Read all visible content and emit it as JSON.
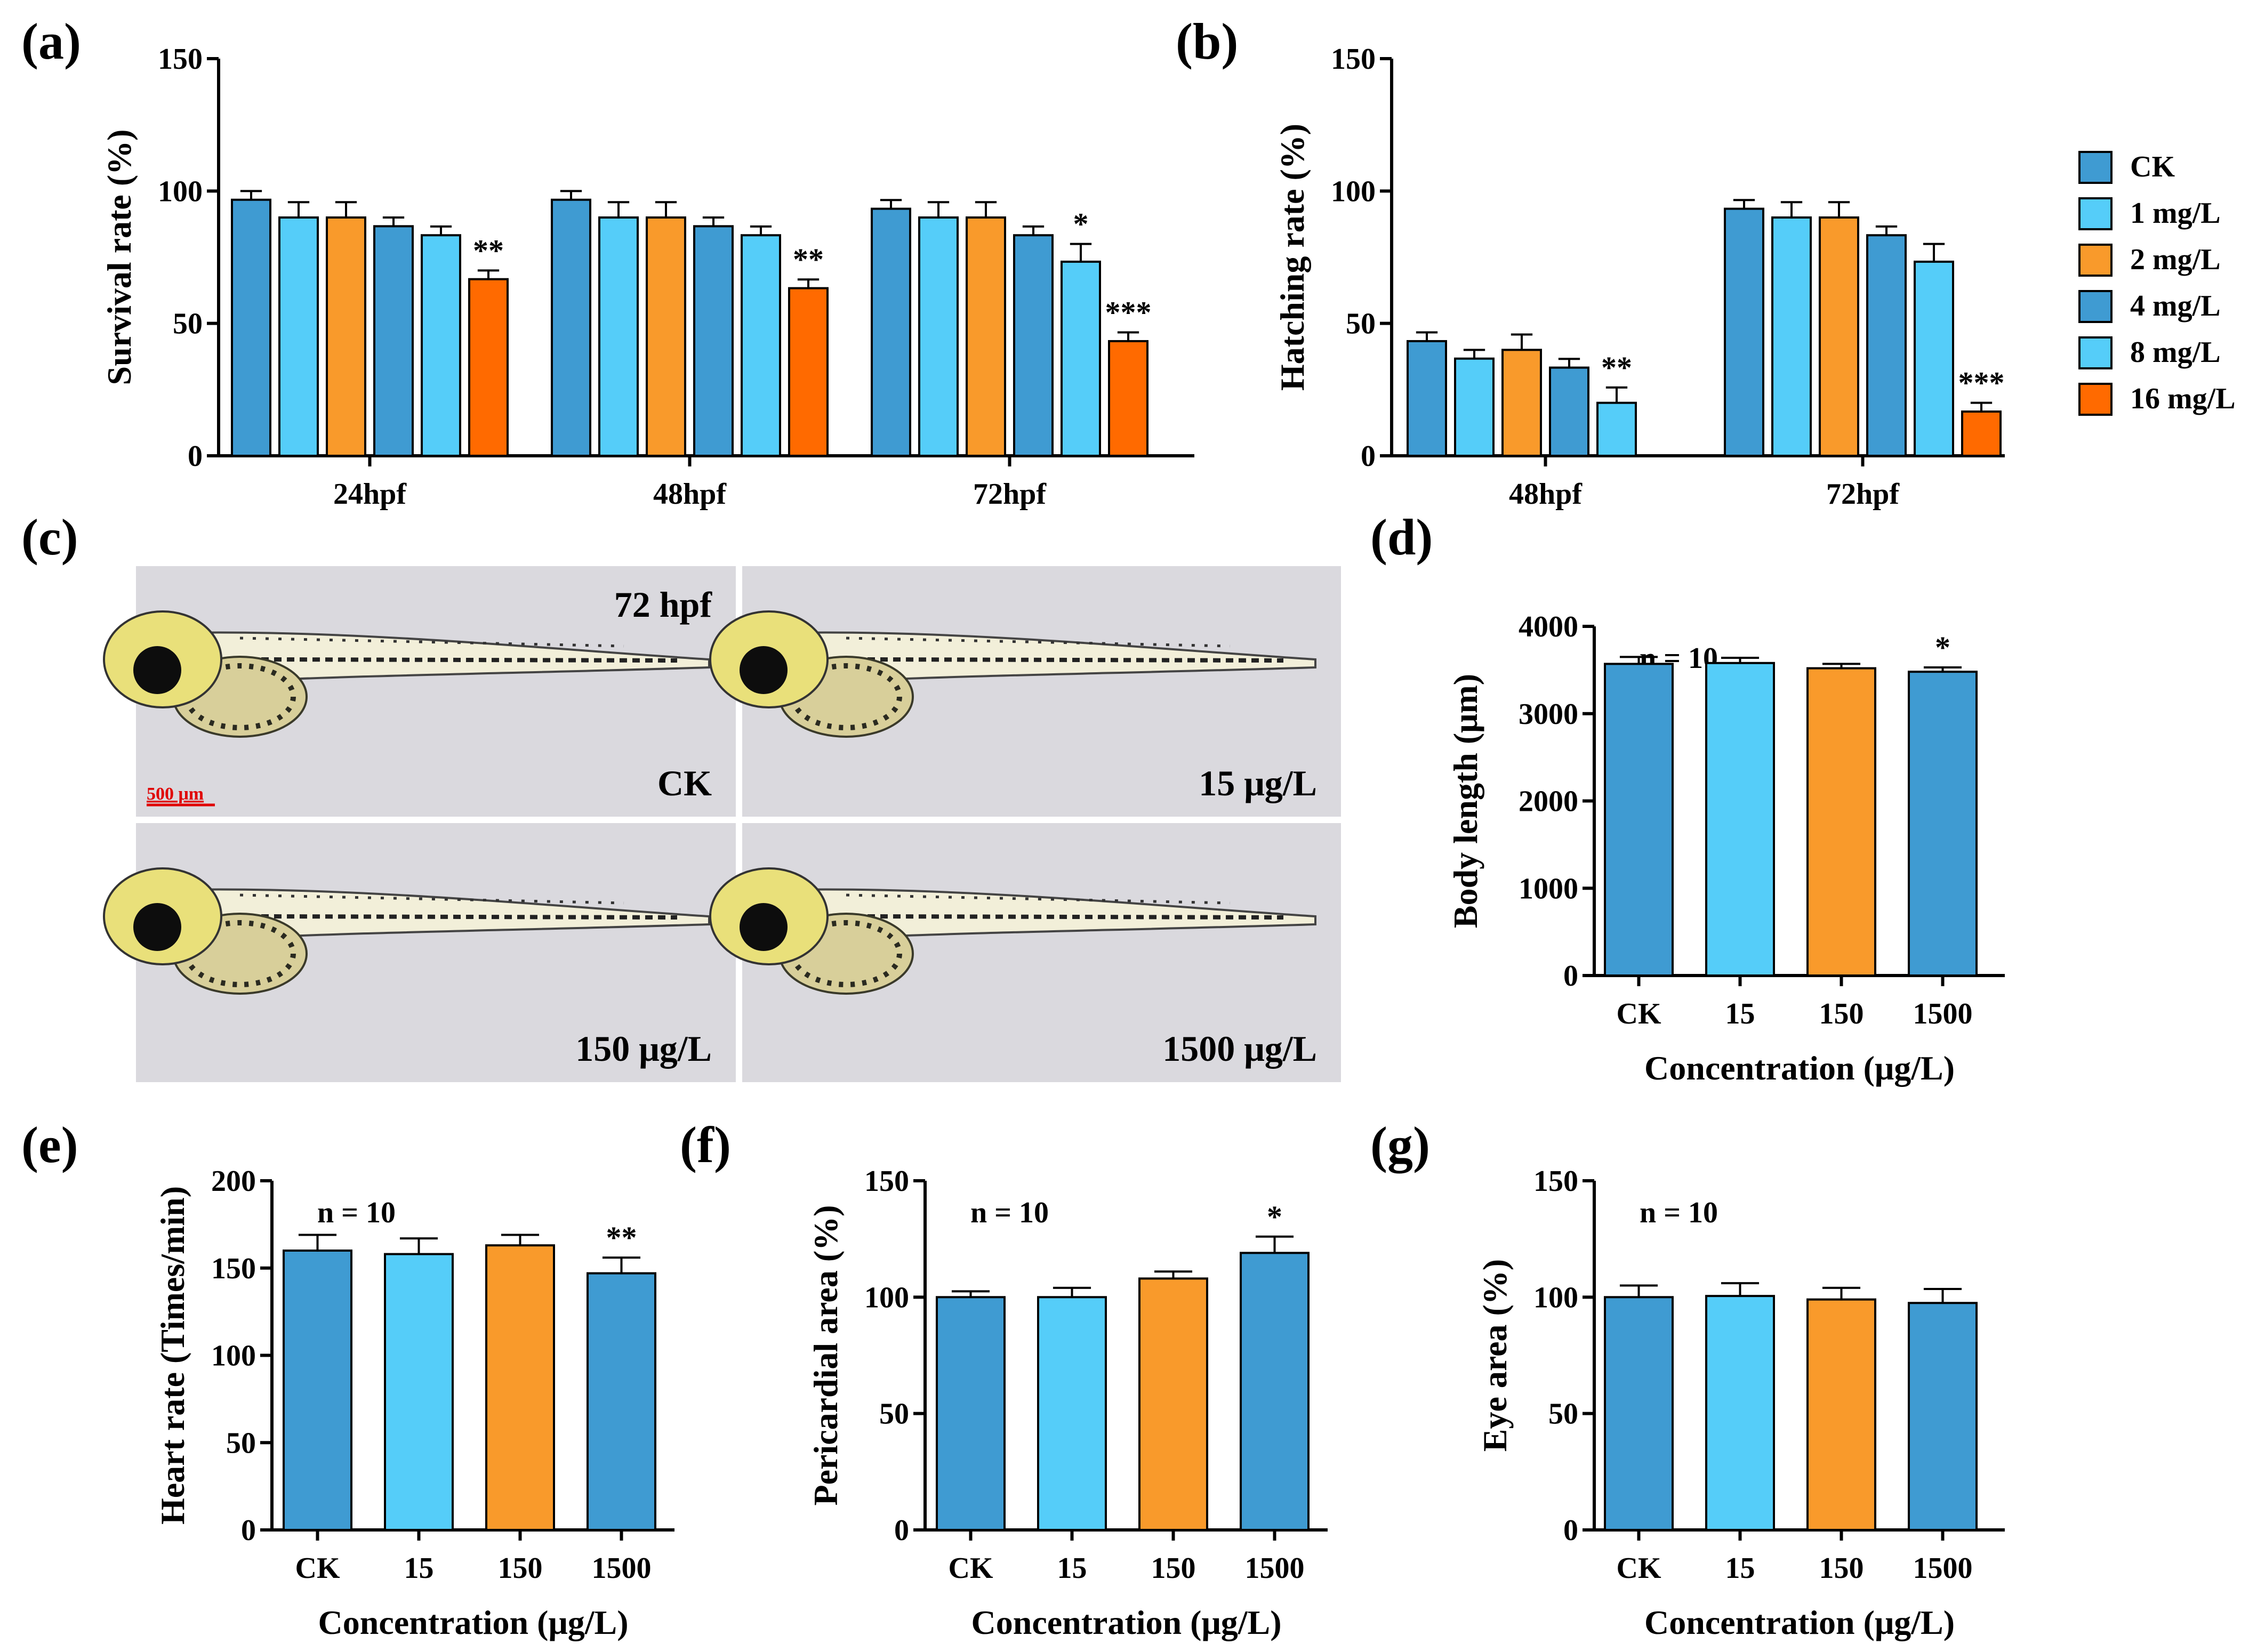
{
  "colors": {
    "CK": "#3F9BD2",
    "1 mg/L": "#55CDF9",
    "2 mg/L": "#F99A2B",
    "4 mg/L": "#3F9BD2",
    "8 mg/L": "#55CDF9",
    "16 mg/L": "#FF6A00",
    "15": "#55CDF9",
    "150": "#F99A2B",
    "1500": "#3F9BD2"
  },
  "legend": [
    "CK",
    "1 mg/L",
    "2 mg/L",
    "4 mg/L",
    "8 mg/L",
    "16 mg/L"
  ],
  "panel_c": {
    "label": "(c)",
    "images": [
      {
        "tag": "72 hpf",
        "label": "CK",
        "scale_bar": "500 μm"
      },
      {
        "label": "15 μg/L"
      },
      {
        "label": "150 μg/L"
      },
      {
        "label": "1500 μg/L"
      }
    ]
  },
  "chart_data": [
    {
      "panel": "(a)",
      "type": "bar",
      "ylabel": "Survival rate (%)",
      "xlabel": "",
      "ylim": [
        0,
        150
      ],
      "yticks": [
        0,
        50,
        100,
        150
      ],
      "categories": [
        "24hpf",
        "48hpf",
        "72hpf"
      ],
      "series": [
        {
          "name": "CK",
          "values": [
            96.7,
            96.7,
            93.3
          ],
          "errors": [
            3.3,
            3.3,
            3.3
          ],
          "sig": [
            "",
            "",
            ""
          ]
        },
        {
          "name": "1 mg/L",
          "values": [
            90,
            90,
            90
          ],
          "errors": [
            5.8,
            5.8,
            5.8
          ],
          "sig": [
            "",
            "",
            ""
          ]
        },
        {
          "name": "2 mg/L",
          "values": [
            90,
            90,
            90
          ],
          "errors": [
            5.8,
            5.8,
            5.8
          ],
          "sig": [
            "",
            "",
            ""
          ]
        },
        {
          "name": "4 mg/L",
          "values": [
            86.7,
            86.7,
            83.3
          ],
          "errors": [
            3.3,
            3.3,
            3.3
          ],
          "sig": [
            "",
            "",
            ""
          ]
        },
        {
          "name": "8 mg/L",
          "values": [
            83.3,
            83.3,
            73.3
          ],
          "errors": [
            3.3,
            3.3,
            6.7
          ],
          "sig": [
            "",
            "",
            "*"
          ]
        },
        {
          "name": "16 mg/L",
          "values": [
            66.7,
            63.3,
            43.3
          ],
          "errors": [
            3.3,
            3.3,
            3.3
          ],
          "sig": [
            "**",
            "**",
            "***"
          ]
        }
      ]
    },
    {
      "panel": "(b)",
      "type": "bar",
      "ylabel": "Hatching rate (%)",
      "xlabel": "",
      "ylim": [
        0,
        150
      ],
      "yticks": [
        0,
        50,
        100,
        150
      ],
      "categories": [
        "48hpf",
        "72hpf"
      ],
      "series": [
        {
          "name": "CK",
          "values": [
            43.3,
            93.3
          ],
          "errors": [
            3.3,
            3.3
          ],
          "sig": [
            "",
            ""
          ]
        },
        {
          "name": "1 mg/L",
          "values": [
            36.7,
            90
          ],
          "errors": [
            3.3,
            5.8
          ],
          "sig": [
            "",
            ""
          ]
        },
        {
          "name": "2 mg/L",
          "values": [
            40,
            90
          ],
          "errors": [
            5.8,
            5.8
          ],
          "sig": [
            "",
            ""
          ]
        },
        {
          "name": "4 mg/L",
          "values": [
            33.3,
            83.3
          ],
          "errors": [
            3.3,
            3.3
          ],
          "sig": [
            "",
            ""
          ]
        },
        {
          "name": "8 mg/L",
          "values": [
            20,
            73.3
          ],
          "errors": [
            5.8,
            6.7
          ],
          "sig": [
            "**",
            ""
          ]
        },
        {
          "name": "16 mg/L",
          "values": [
            0,
            16.7
          ],
          "errors": [
            0,
            3.3
          ],
          "sig": [
            "",
            "***"
          ]
        }
      ]
    },
    {
      "panel": "(d)",
      "type": "bar",
      "ylabel": "Body length (μm)",
      "xlabel": "Concentration (μg/L)",
      "ylim": [
        0,
        4000
      ],
      "yticks": [
        0,
        1000,
        2000,
        3000,
        4000
      ],
      "n_label": "n = 10",
      "categories": [
        "CK",
        "15",
        "150",
        "1500"
      ],
      "values": [
        3570,
        3580,
        3520,
        3480
      ],
      "errors": [
        80,
        60,
        50,
        50
      ],
      "sig": [
        "",
        "",
        "",
        "*"
      ]
    },
    {
      "panel": "(e)",
      "type": "bar",
      "ylabel": "Heart rate (Times/min)",
      "xlabel": "Concentration (μg/L)",
      "ylim": [
        0,
        200
      ],
      "yticks": [
        0,
        50,
        100,
        150,
        200
      ],
      "n_label": "n = 10",
      "categories": [
        "CK",
        "15",
        "150",
        "1500"
      ],
      "values": [
        160,
        158,
        163,
        147
      ],
      "errors": [
        9,
        9,
        6,
        9
      ],
      "sig": [
        "",
        "",
        "",
        "**"
      ]
    },
    {
      "panel": "(f)",
      "type": "bar",
      "ylabel": "Pericardial area (%)",
      "xlabel": "Concentration (μg/L)",
      "ylim": [
        0,
        150
      ],
      "yticks": [
        0,
        50,
        100,
        150
      ],
      "n_label": "n = 10",
      "categories": [
        "CK",
        "15",
        "150",
        "1500"
      ],
      "values": [
        100,
        100,
        108,
        119
      ],
      "errors": [
        2.5,
        4,
        3,
        7
      ],
      "sig": [
        "",
        "",
        "",
        "*"
      ]
    },
    {
      "panel": "(g)",
      "type": "bar",
      "ylabel": "Eye area (%)",
      "xlabel": "Concentration (μg/L)",
      "ylim": [
        0,
        150
      ],
      "yticks": [
        0,
        50,
        100,
        150
      ],
      "n_label": "n = 10",
      "categories": [
        "CK",
        "15",
        "150",
        "1500"
      ],
      "values": [
        100,
        100.5,
        99,
        97.5
      ],
      "errors": [
        5,
        5.5,
        5,
        6
      ],
      "sig": [
        "",
        "",
        "",
        ""
      ]
    }
  ]
}
